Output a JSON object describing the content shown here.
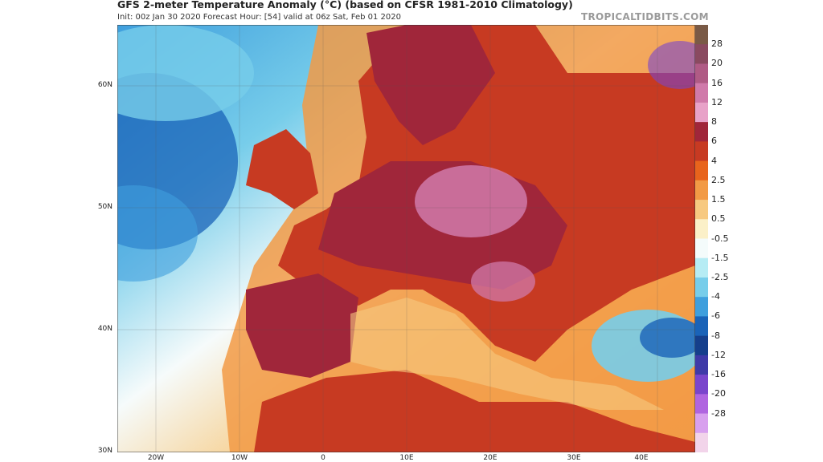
{
  "header": {
    "title": "GFS 2-meter Temperature Anomaly (°C) (based on CFSR 1981-2010 Climatology)",
    "subtitle": "Init: 00z Jan 30 2020   Forecast Hour: [54]   valid at 06z Sat, Feb 01 2020",
    "brand": "TROPICALTIDBITS.COM"
  },
  "map": {
    "lat_labels": [
      "60N",
      "50N",
      "40N",
      "30N"
    ],
    "lon_labels": [
      "20W",
      "10W",
      "0",
      "10E",
      "20E",
      "30E",
      "40E"
    ]
  },
  "colorbar": {
    "labels": [
      "28",
      "20",
      "16",
      "12",
      "8",
      "6",
      "4",
      "2.5",
      "1.5",
      "0.5",
      "-0.5",
      "-1.5",
      "-2.5",
      "-4",
      "-6",
      "-8",
      "-12",
      "-16",
      "-20",
      "-28"
    ],
    "colors": [
      "#7a5a46",
      "#8a4a60",
      "#b05b85",
      "#d07aaa",
      "#e8a2c8",
      "#a0263a",
      "#c73a22",
      "#e8641c",
      "#f29a45",
      "#f7c980",
      "#fbf0c8",
      "#f4fbfb",
      "#b6ecf4",
      "#77cdea",
      "#3f9fdd",
      "#1a63b8",
      "#153f8c",
      "#3f3aa8",
      "#7a45cc",
      "#b065e0",
      "#d8a0ee",
      "#f2d4ea"
    ]
  }
}
